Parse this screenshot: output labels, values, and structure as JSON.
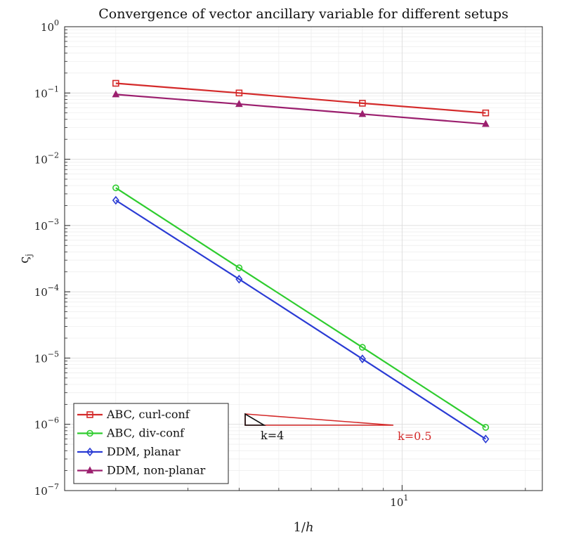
{
  "chart_data": {
    "type": "line",
    "title": "Convergence of vector ancillary variable for different setups",
    "xlabel_main": "1/",
    "xlabel_italic": "h",
    "ylabel_main": "ς",
    "ylabel_sub": "j",
    "xscale": "log",
    "yscale": "log",
    "xlim": [
      1.5,
      22
    ],
    "ylim": [
      1e-07,
      1
    ],
    "grid": true,
    "x": [
      2,
      4,
      8,
      16
    ],
    "x_ticks": [
      {
        "value": 10,
        "base": "10",
        "exp": "1"
      }
    ],
    "y_ticks": [
      {
        "value": 1,
        "base": "10",
        "exp": "0"
      },
      {
        "value": 0.1,
        "base": "10",
        "exp": "−1"
      },
      {
        "value": 0.01,
        "base": "10",
        "exp": "−2"
      },
      {
        "value": 0.001,
        "base": "10",
        "exp": "−3"
      },
      {
        "value": 0.0001,
        "base": "10",
        "exp": "−4"
      },
      {
        "value": 1e-05,
        "base": "10",
        "exp": "−5"
      },
      {
        "value": 1e-06,
        "base": "10",
        "exp": "−6"
      },
      {
        "value": 1e-07,
        "base": "10",
        "exp": "−7"
      }
    ],
    "series": [
      {
        "name": "ABC, curl-conf",
        "color": "#d42a2a",
        "marker": "square",
        "values": [
          0.14,
          0.1,
          0.07,
          0.05
        ]
      },
      {
        "name": "ABC, div-conf",
        "color": "#2ecc2e",
        "marker": "circle",
        "values": [
          0.0037,
          0.00023,
          1.45e-05,
          9e-07
        ]
      },
      {
        "name": "DDM, planar",
        "color": "#2a3bd4",
        "marker": "diamond",
        "values": [
          0.0024,
          0.000155,
          9.7e-06,
          6e-07
        ]
      },
      {
        "name": "DDM, non-planar",
        "color": "#9b1f6e",
        "marker": "triangle",
        "values": [
          0.095,
          0.068,
          0.048,
          0.034
        ]
      }
    ],
    "legend_position": "bottom-left",
    "annotations": [
      {
        "label": "k=4",
        "color": "#111111",
        "slope": 4
      },
      {
        "label": "k=0.5",
        "color": "#d42a2a",
        "slope": 0.5
      }
    ]
  }
}
